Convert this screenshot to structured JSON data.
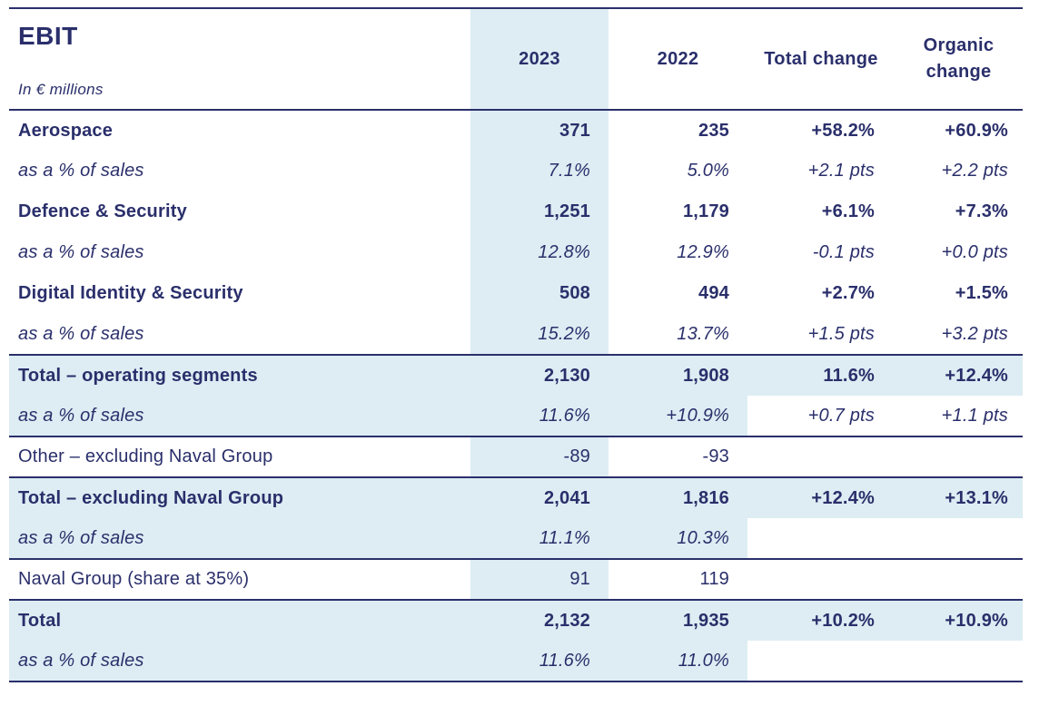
{
  "title": "EBIT",
  "subtitle": "In € millions",
  "columns": {
    "y2023": "2023",
    "y2022": "2022",
    "total_change": "Total change",
    "organic_change": "Organic change"
  },
  "rows": [
    {
      "label": "Aerospace",
      "y2023": "371",
      "y2022": "235",
      "total_change": "+58.2%",
      "organic_change": "+60.9%"
    },
    {
      "label": "as a % of sales",
      "y2023": "7.1%",
      "y2022": "5.0%",
      "total_change": "+2.1 pts",
      "organic_change": "+2.2 pts"
    },
    {
      "label": "Defence & Security",
      "y2023": "1,251",
      "y2022": "1,179",
      "total_change": "+6.1%",
      "organic_change": "+7.3%"
    },
    {
      "label": "as a % of sales",
      "y2023": "12.8%",
      "y2022": "12.9%",
      "total_change": "-0.1 pts",
      "organic_change": "+0.0 pts"
    },
    {
      "label": "Digital Identity & Security",
      "y2023": "508",
      "y2022": "494",
      "total_change": "+2.7%",
      "organic_change": "+1.5%"
    },
    {
      "label": "as a % of sales",
      "y2023": "15.2%",
      "y2022": "13.7%",
      "total_change": "+1.5 pts",
      "organic_change": "+3.2 pts"
    },
    {
      "label": "Total – operating segments",
      "y2023": "2,130",
      "y2022": "1,908",
      "total_change": "11.6%",
      "organic_change": "+12.4%"
    },
    {
      "label": "as a % of sales",
      "y2023": "11.6%",
      "y2022": "+10.9%",
      "total_change": "+0.7 pts",
      "organic_change": "+1.1 pts"
    },
    {
      "label": "Other – excluding Naval Group",
      "y2023": "-89",
      "y2022": "-93",
      "total_change": "",
      "organic_change": ""
    },
    {
      "label": "Total – excluding Naval Group",
      "y2023": "2,041",
      "y2022": "1,816",
      "total_change": "+12.4%",
      "organic_change": "+13.1%"
    },
    {
      "label": "as a % of sales",
      "y2023": "11.1%",
      "y2022": "10.3%",
      "total_change": "",
      "organic_change": ""
    },
    {
      "label": "Naval Group (share at 35%)",
      "y2023": "91",
      "y2022": "119",
      "total_change": "",
      "organic_change": ""
    },
    {
      "label": "Total",
      "y2023": "2,132",
      "y2022": "1,935",
      "total_change": "+10.2%",
      "organic_change": "+10.9%"
    },
    {
      "label": "as a % of sales",
      "y2023": "11.6%",
      "y2022": "11.0%",
      "total_change": "",
      "organic_change": ""
    }
  ],
  "colors": {
    "text_navy": "#2a2f6b",
    "highlight_blue": "#ddedf3",
    "background": "#ffffff"
  }
}
